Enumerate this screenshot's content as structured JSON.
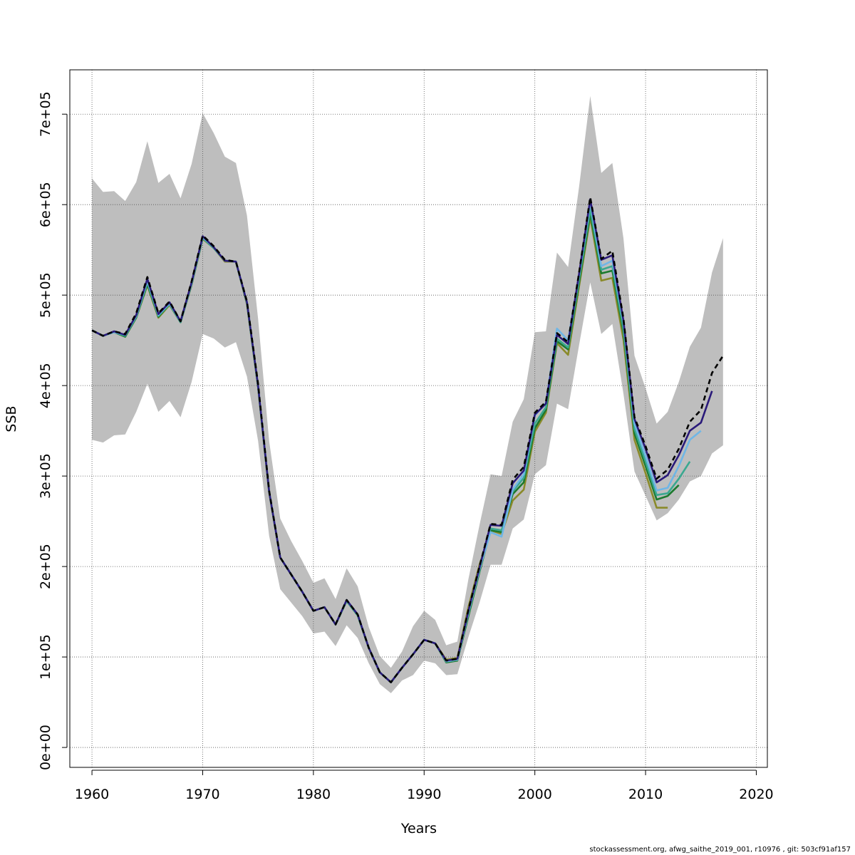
{
  "footer": "stockassessment.org, afwg_saithe_2019_001, r10976 , git: 503cf91af157",
  "chart_data": {
    "type": "line",
    "title": "",
    "xlabel": "Years",
    "ylabel": "SSB",
    "xlim": [
      1958,
      2021
    ],
    "ylim": [
      -22000,
      749000
    ],
    "grid": true,
    "xticks": [
      1960,
      1970,
      1980,
      1990,
      2000,
      2010,
      2020
    ],
    "yticks": [
      0,
      100000,
      200000,
      300000,
      400000,
      500000,
      600000,
      700000
    ],
    "ytick_labels": [
      "0e+00",
      "1e+05",
      "2e+05",
      "3e+05",
      "4e+05",
      "5e+05",
      "6e+05",
      "7e+05"
    ],
    "band": {
      "color": "#bebebe",
      "x": [
        1960,
        1961,
        1962,
        1963,
        1964,
        1965,
        1966,
        1967,
        1968,
        1969,
        1970,
        1971,
        1972,
        1973,
        1974,
        1975,
        1976,
        1977,
        1978,
        1979,
        1980,
        1981,
        1982,
        1983,
        1984,
        1985,
        1986,
        1987,
        1988,
        1989,
        1990,
        1991,
        1992,
        1993,
        1994,
        1995,
        1996,
        1997,
        1998,
        1999,
        2000,
        2001,
        2002,
        2003,
        2004,
        2005,
        2006,
        2007,
        2008,
        2009,
        2010,
        2011,
        2012,
        2013,
        2014,
        2015,
        2016,
        2017
      ],
      "upper": [
        629000,
        614000,
        615000,
        604000,
        625000,
        670000,
        624000,
        634000,
        607000,
        645000,
        701000,
        679000,
        653000,
        646000,
        588000,
        474000,
        339000,
        253000,
        228000,
        206000,
        182000,
        187000,
        164000,
        198000,
        178000,
        133000,
        101000,
        88000,
        106000,
        134000,
        151000,
        141000,
        113000,
        117000,
        186000,
        246000,
        302000,
        300000,
        360000,
        385000,
        459000,
        460000,
        547000,
        531000,
        620000,
        720000,
        635000,
        646000,
        563000,
        433000,
        397000,
        358000,
        371000,
        404000,
        443000,
        464000,
        525000,
        563000
      ],
      "lower": [
        340000,
        337000,
        345000,
        346000,
        371000,
        402000,
        371000,
        383000,
        365000,
        404000,
        457000,
        452000,
        442000,
        448000,
        410000,
        339000,
        234000,
        175000,
        160000,
        145000,
        126000,
        128000,
        112000,
        135000,
        121000,
        93000,
        70000,
        60000,
        74000,
        80000,
        96000,
        93000,
        80000,
        81000,
        122000,
        160000,
        202000,
        202000,
        242000,
        252000,
        302000,
        312000,
        380000,
        374000,
        445000,
        514000,
        457000,
        468000,
        391000,
        305000,
        278000,
        251000,
        259000,
        274000,
        294000,
        300000,
        325000,
        334000
      ]
    },
    "series": [
      {
        "color": "#000000",
        "dashed": true,
        "x": [
          1960,
          1961,
          1962,
          1963,
          1964,
          1965,
          1966,
          1967,
          1968,
          1969,
          1970,
          1971,
          1972,
          1973,
          1974,
          1975,
          1976,
          1977,
          1978,
          1979,
          1980,
          1981,
          1982,
          1983,
          1984,
          1985,
          1986,
          1987,
          1988,
          1989,
          1990,
          1991,
          1992,
          1993,
          1994,
          1995,
          1996,
          1997,
          1998,
          1999,
          2000,
          2001,
          2002,
          2003,
          2004,
          2005,
          2006,
          2007,
          2008,
          2009,
          2010,
          2011,
          2012,
          2013,
          2014,
          2015,
          2016,
          2017
        ],
        "values": [
          461000,
          455000,
          460000,
          457000,
          480000,
          520000,
          480000,
          493000,
          471000,
          515000,
          566000,
          554000,
          539000,
          537000,
          493000,
          402000,
          284000,
          210000,
          191000,
          172000,
          151000,
          155000,
          136000,
          163000,
          147000,
          110000,
          83000,
          72000,
          88000,
          103000,
          119000,
          115000,
          96000,
          98000,
          152000,
          200000,
          247000,
          246000,
          296000,
          310000,
          370000,
          382000,
          458000,
          448000,
          525000,
          608000,
          540000,
          549000,
          474000,
          365000,
          333000,
          297000,
          307000,
          330000,
          360000,
          373000,
          414000,
          433000
        ]
      },
      {
        "color": "#2a1a7a",
        "dashed": false,
        "x": [
          1960,
          1961,
          1962,
          1963,
          1964,
          1965,
          1966,
          1967,
          1968,
          1969,
          1970,
          1971,
          1972,
          1973,
          1974,
          1975,
          1976,
          1977,
          1978,
          1979,
          1980,
          1981,
          1982,
          1983,
          1984,
          1985,
          1986,
          1987,
          1988,
          1989,
          1990,
          1991,
          1992,
          1993,
          1994,
          1995,
          1996,
          1997,
          1998,
          1999,
          2000,
          2001,
          2002,
          2003,
          2004,
          2005,
          2006,
          2007,
          2008,
          2009,
          2010,
          2011,
          2012,
          2013,
          2014,
          2015,
          2016
        ],
        "values": [
          461000,
          455000,
          460000,
          456000,
          478000,
          518000,
          479000,
          492000,
          471000,
          514000,
          565000,
          553000,
          538000,
          537000,
          492000,
          400000,
          283000,
          210000,
          191000,
          172000,
          151000,
          155000,
          136000,
          163000,
          147000,
          110000,
          83000,
          72000,
          88000,
          103000,
          119000,
          115000,
          96000,
          98000,
          151000,
          199000,
          246000,
          245000,
          292000,
          306000,
          368000,
          380000,
          456000,
          446000,
          524000,
          606000,
          539000,
          544000,
          472000,
          363000,
          330000,
          293000,
          301000,
          323000,
          350000,
          359000,
          394000
        ]
      },
      {
        "color": "#6fb6e6",
        "dashed": false,
        "x": [
          1960,
          1961,
          1962,
          1963,
          1964,
          1965,
          1966,
          1967,
          1968,
          1969,
          1970,
          1971,
          1972,
          1973,
          1974,
          1975,
          1976,
          1977,
          1978,
          1979,
          1980,
          1981,
          1982,
          1983,
          1984,
          1985,
          1986,
          1987,
          1988,
          1989,
          1990,
          1991,
          1992,
          1993,
          1994,
          1995,
          1996,
          1997,
          1998,
          1999,
          2000,
          2001,
          2002,
          2003,
          2004,
          2005,
          2006,
          2007,
          2008,
          2009,
          2010,
          2011,
          2012,
          2013,
          2014,
          2015
        ],
        "values": [
          461000,
          455000,
          459000,
          456000,
          477000,
          516000,
          478000,
          491000,
          471000,
          513000,
          564000,
          553000,
          538000,
          537000,
          492000,
          400000,
          283000,
          210000,
          191000,
          172000,
          151000,
          155000,
          136000,
          163000,
          147000,
          110000,
          83000,
          72000,
          88000,
          103000,
          119000,
          115000,
          95000,
          97000,
          149000,
          197000,
          238000,
          233000,
          285000,
          302000,
          367000,
          381000,
          463000,
          450000,
          522000,
          603000,
          532000,
          538000,
          470000,
          358000,
          322000,
          284000,
          287000,
          311000,
          340000,
          350000
        ]
      },
      {
        "color": "#3aa890",
        "dashed": false,
        "x": [
          1960,
          1961,
          1962,
          1963,
          1964,
          1965,
          1966,
          1967,
          1968,
          1969,
          1970,
          1971,
          1972,
          1973,
          1974,
          1975,
          1976,
          1977,
          1978,
          1979,
          1980,
          1981,
          1982,
          1983,
          1984,
          1985,
          1986,
          1987,
          1988,
          1989,
          1990,
          1991,
          1992,
          1993,
          1994,
          1995,
          1996,
          1997,
          1998,
          1999,
          2000,
          2001,
          2002,
          2003,
          2004,
          2005,
          2006,
          2007,
          2008,
          2009,
          2010,
          2011,
          2012,
          2013,
          2014
        ],
        "values": [
          461000,
          455000,
          459000,
          455000,
          476000,
          514000,
          477000,
          490000,
          470000,
          512000,
          563000,
          552000,
          538000,
          537000,
          491000,
          399000,
          283000,
          210000,
          191000,
          172000,
          151000,
          155000,
          136000,
          162000,
          146000,
          110000,
          83000,
          72000,
          88000,
          103000,
          119000,
          115000,
          95000,
          97000,
          148000,
          196000,
          242000,
          240000,
          283000,
          298000,
          358000,
          376000,
          452000,
          442000,
          518000,
          595000,
          528000,
          532000,
          463000,
          352000,
          316000,
          279000,
          281000,
          297000,
          316000
        ]
      },
      {
        "color": "#1c7a2e",
        "dashed": false,
        "x": [
          1960,
          1961,
          1962,
          1963,
          1964,
          1965,
          1966,
          1967,
          1968,
          1969,
          1970,
          1971,
          1972,
          1973,
          1974,
          1975,
          1976,
          1977,
          1978,
          1979,
          1980,
          1981,
          1982,
          1983,
          1984,
          1985,
          1986,
          1987,
          1988,
          1989,
          1990,
          1991,
          1992,
          1993,
          1994,
          1995,
          1996,
          1997,
          1998,
          1999,
          2000,
          2001,
          2002,
          2003,
          2004,
          2005,
          2006,
          2007,
          2008,
          2009,
          2010,
          2011,
          2012,
          2013
        ],
        "values": [
          461000,
          455000,
          459000,
          454000,
          475000,
          512000,
          476000,
          490000,
          470000,
          512000,
          563000,
          552000,
          538000,
          537000,
          491000,
          399000,
          283000,
          210000,
          191000,
          172000,
          151000,
          155000,
          136000,
          162000,
          146000,
          110000,
          83000,
          72000,
          88000,
          103000,
          119000,
          115000,
          94000,
          96000,
          145000,
          194000,
          240000,
          238000,
          280000,
          293000,
          353000,
          373000,
          449000,
          440000,
          514000,
          590000,
          524000,
          527000,
          459000,
          347000,
          311000,
          274000,
          278000,
          290000
        ]
      },
      {
        "color": "#8a8a2a",
        "dashed": false,
        "x": [
          1960,
          1961,
          1962,
          1963,
          1964,
          1965,
          1966,
          1967,
          1968,
          1969,
          1970,
          1971,
          1972,
          1973,
          1974,
          1975,
          1976,
          1977,
          1978,
          1979,
          1980,
          1981,
          1982,
          1983,
          1984,
          1985,
          1986,
          1987,
          1988,
          1989,
          1990,
          1991,
          1992,
          1993,
          1994,
          1995,
          1996,
          1997,
          1998,
          1999,
          2000,
          2001,
          2002,
          2003,
          2004,
          2005,
          2006,
          2007,
          2008,
          2009,
          2010,
          2011,
          2012
        ],
        "values": [
          461000,
          455000,
          459000,
          454000,
          475000,
          511000,
          475000,
          489000,
          470000,
          511000,
          562000,
          552000,
          537000,
          537000,
          490000,
          398000,
          282000,
          210000,
          191000,
          172000,
          151000,
          155000,
          136000,
          162000,
          146000,
          110000,
          83000,
          72000,
          88000,
          103000,
          119000,
          115000,
          97000,
          99000,
          155000,
          202000,
          240000,
          236000,
          273000,
          285000,
          349000,
          370000,
          447000,
          434000,
          510000,
          586000,
          516000,
          519000,
          451000,
          340000,
          303000,
          265000,
          265000
        ]
      }
    ]
  }
}
